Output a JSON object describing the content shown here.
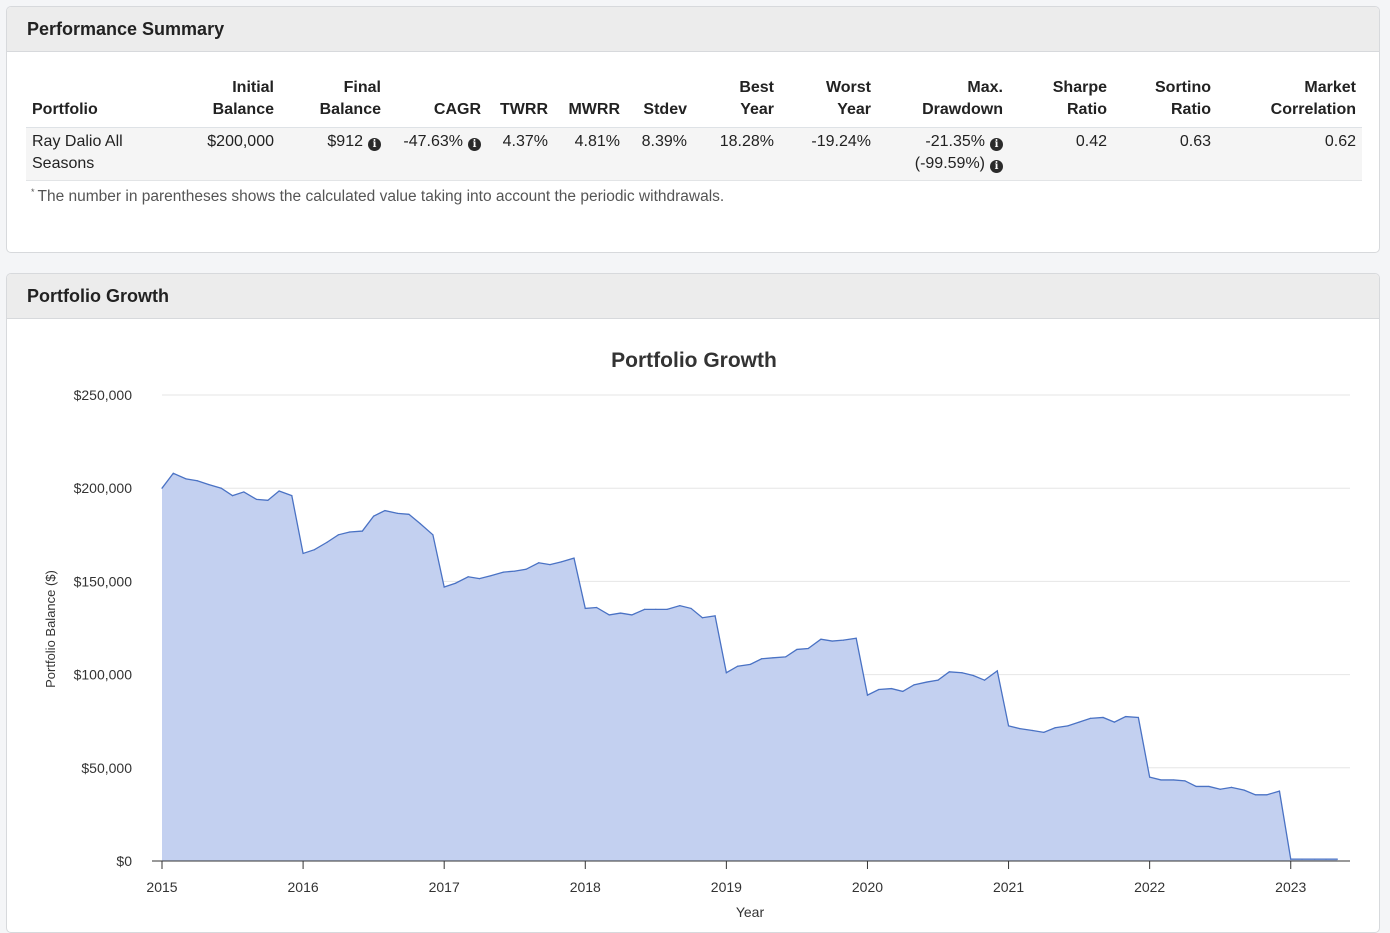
{
  "summary": {
    "title": "Performance Summary",
    "columns": [
      {
        "line1": "",
        "line2": "Portfolio"
      },
      {
        "line1": "Initial",
        "line2": "Balance"
      },
      {
        "line1": "Final",
        "line2": "Balance"
      },
      {
        "line1": "",
        "line2": "CAGR"
      },
      {
        "line1": "",
        "line2": "TWRR"
      },
      {
        "line1": "",
        "line2": "MWRR"
      },
      {
        "line1": "",
        "line2": "Stdev"
      },
      {
        "line1": "Best",
        "line2": "Year"
      },
      {
        "line1": "Worst",
        "line2": "Year"
      },
      {
        "line1": "Max.",
        "line2": "Drawdown"
      },
      {
        "line1": "Sharpe",
        "line2": "Ratio"
      },
      {
        "line1": "Sortino",
        "line2": "Ratio"
      },
      {
        "line1": "Market",
        "line2": "Correlation"
      }
    ],
    "row": {
      "portfolio_line1": "Ray Dalio All",
      "portfolio_line2": "Seasons",
      "initial_balance": "$200,000",
      "final_balance": "$912",
      "cagr": "-47.63%",
      "twrr": "4.37%",
      "mwrr": "4.81%",
      "stdev": "8.39%",
      "best_year": "18.28%",
      "worst_year": "-19.24%",
      "max_drawdown": "-21.35%",
      "max_drawdown_withdrawals": "(-99.59%)",
      "sharpe": "0.42",
      "sortino": "0.63",
      "market_correlation": "0.62"
    },
    "info_glyph": "i",
    "footnote_mark": "*",
    "footnote": "The number in parentheses shows the calculated value taking into account the periodic withdrawals."
  },
  "growth": {
    "title": "Portfolio Growth"
  },
  "chart_data": {
    "type": "area",
    "title": "Portfolio Growth",
    "xlabel": "Year",
    "ylabel": "Portfolio Balance ($)",
    "ylim": [
      0,
      250000
    ],
    "xlim": [
      2015,
      2023.42
    ],
    "yticks": [
      {
        "value": 0,
        "label": "$0"
      },
      {
        "value": 50000,
        "label": "$50,000"
      },
      {
        "value": 100000,
        "label": "$100,000"
      },
      {
        "value": 150000,
        "label": "$150,000"
      },
      {
        "value": 200000,
        "label": "$200,000"
      },
      {
        "value": 250000,
        "label": "$250,000"
      }
    ],
    "xticks": [
      2015,
      2016,
      2017,
      2018,
      2019,
      2020,
      2021,
      2022,
      2023
    ],
    "grid": true,
    "fill_color": "#c3d0f0",
    "line_color": "#4a72c4",
    "series": [
      {
        "x": [
          2015.0,
          2015.08,
          2015.17,
          2015.25,
          2015.33,
          2015.42,
          2015.5,
          2015.58,
          2015.67,
          2015.75,
          2015.83,
          2015.92,
          2016.0,
          2016.08,
          2016.17,
          2016.25,
          2016.33,
          2016.42,
          2016.5,
          2016.58,
          2016.67,
          2016.75,
          2016.83,
          2016.92,
          2017.0,
          2017.08,
          2017.17,
          2017.25,
          2017.33,
          2017.42,
          2017.5,
          2017.58,
          2017.67,
          2017.75,
          2017.83,
          2017.92,
          2018.0,
          2018.08,
          2018.17,
          2018.25,
          2018.33,
          2018.42,
          2018.5,
          2018.58,
          2018.67,
          2018.75,
          2018.83,
          2018.92,
          2019.0,
          2019.08,
          2019.17,
          2019.25,
          2019.33,
          2019.42,
          2019.5,
          2019.58,
          2019.67,
          2019.75,
          2019.83,
          2019.92,
          2020.0,
          2020.08,
          2020.17,
          2020.25,
          2020.33,
          2020.42,
          2020.5,
          2020.58,
          2020.67,
          2020.75,
          2020.83,
          2020.92,
          2021.0,
          2021.08,
          2021.17,
          2021.25,
          2021.33,
          2021.42,
          2021.5,
          2021.58,
          2021.67,
          2021.75,
          2021.83,
          2021.92,
          2022.0,
          2022.08,
          2022.17,
          2022.25,
          2022.33,
          2022.42,
          2022.5,
          2022.58,
          2022.67,
          2022.75,
          2022.83,
          2022.92,
          2023.0,
          2023.08,
          2023.17,
          2023.25,
          2023.33
        ],
        "y": [
          200000,
          208000,
          205000,
          204000,
          202000,
          200000,
          196000,
          198000,
          194000,
          193500,
          198500,
          196000,
          165000,
          167000,
          171000,
          175000,
          176500,
          177000,
          185000,
          188000,
          186500,
          186000,
          181000,
          175000,
          147000,
          149000,
          152500,
          151500,
          153000,
          155000,
          155500,
          156500,
          160000,
          159000,
          160500,
          162500,
          135500,
          136000,
          132000,
          133000,
          132000,
          135000,
          135000,
          135000,
          137000,
          135500,
          130500,
          131500,
          101000,
          104500,
          105500,
          108500,
          109000,
          109500,
          113500,
          114000,
          119000,
          118000,
          118500,
          119500,
          89000,
          92000,
          92500,
          91000,
          94500,
          96000,
          97000,
          101500,
          101000,
          99500,
          97000,
          102000,
          72500,
          71000,
          70000,
          69000,
          71500,
          72500,
          74500,
          76500,
          77000,
          74500,
          77500,
          77000,
          45000,
          43500,
          43500,
          43000,
          40000,
          40000,
          38500,
          39500,
          38000,
          35500,
          35500,
          37500,
          1000,
          1000,
          1000,
          1000,
          1000
        ]
      }
    ]
  }
}
